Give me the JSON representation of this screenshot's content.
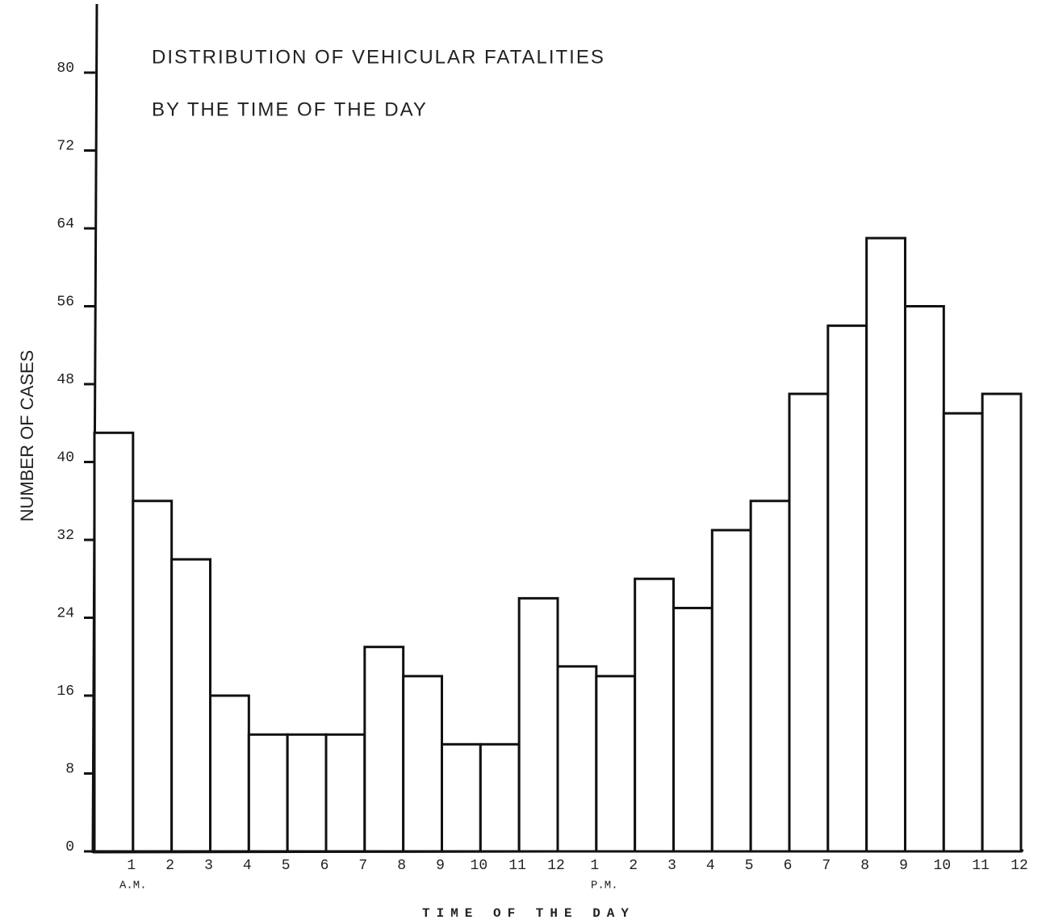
{
  "chart_data": {
    "type": "bar",
    "title": "DISTRIBUTION OF VEHICULAR FATALITIES",
    "subtitle": "BY THE TIME OF THE DAY",
    "x_label": "TIME OF THE DAY",
    "y_label": "NUMBER OF CASES",
    "annotations": [
      "A.M.",
      "P.M."
    ],
    "categories": [
      "1",
      "2",
      "3",
      "4",
      "5",
      "6",
      "7",
      "8",
      "9",
      "10",
      "11",
      "12",
      "1",
      "2",
      "3",
      "4",
      "5",
      "6",
      "7",
      "8",
      "9",
      "10",
      "11",
      "12"
    ],
    "values": [
      43,
      36,
      30,
      16,
      12,
      12,
      12,
      21,
      18,
      11,
      11,
      26,
      19,
      18,
      28,
      25,
      33,
      36,
      47,
      54,
      63,
      56,
      45,
      47
    ],
    "color": "#ffffff",
    "ylim": [
      0,
      80
    ],
    "yticks": [
      0,
      8,
      16,
      24,
      32,
      40,
      48,
      56,
      64,
      72,
      80
    ],
    "grid": false
  }
}
